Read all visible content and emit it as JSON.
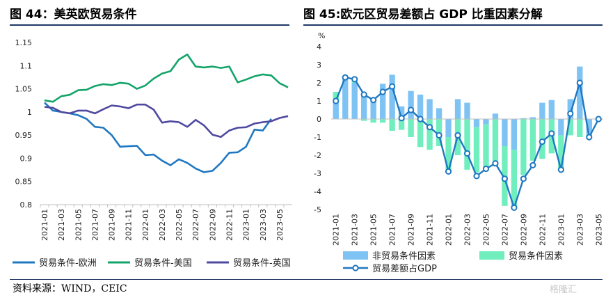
{
  "left_title": "图 44：美英欧贸易条件",
  "right_title": "图 45:欧元区贸易差额占 GDP 比重因素分解",
  "source": "资料来源：WIND，CEIC",
  "watermark": "格隆汇",
  "chart_data": [
    {
      "type": "line",
      "x": [
        "2021-01",
        "2021-02",
        "2021-03",
        "2021-04",
        "2021-05",
        "2021-06",
        "2021-07",
        "2021-08",
        "2021-09",
        "2021-10",
        "2021-11",
        "2021-12",
        "2022-01",
        "2022-02",
        "2022-03",
        "2022-04",
        "2022-05",
        "2022-06",
        "2022-07",
        "2022-08",
        "2022-09",
        "2022-10",
        "2022-11",
        "2022-12",
        "2023-01",
        "2023-02",
        "2023-03",
        "2023-04",
        "2023-05",
        "2023-06"
      ],
      "xticks": [
        "2021-01",
        "2021-03",
        "2021-05",
        "2021-07",
        "2021-09",
        "2021-11",
        "2022-01",
        "2022-03",
        "2022-05",
        "2022-07",
        "2022-09",
        "2022-11",
        "2023-01",
        "2023-03",
        "2023-05"
      ],
      "ylim": [
        0.8,
        1.15
      ],
      "yticks": [
        "0.8",
        "0.85",
        "0.9",
        "0.95",
        "1",
        "1.05",
        "1.1",
        "1.15"
      ],
      "series": [
        {
          "name": "贸易条件-欧洲",
          "color": "#1f78c1",
          "values": [
            1.02,
            1.003,
            1.0,
            0.997,
            0.993,
            0.985,
            0.968,
            0.966,
            0.95,
            0.925,
            0.926,
            0.927,
            0.907,
            0.908,
            0.895,
            0.885,
            0.898,
            0.89,
            0.878,
            0.87,
            0.873,
            0.89,
            0.912,
            0.913,
            0.925,
            0.962,
            0.96,
            0.985,
            null,
            null
          ]
        },
        {
          "name": "贸易条件-美国",
          "color": "#13a46a",
          "values": [
            1.025,
            1.022,
            1.034,
            1.037,
            1.047,
            1.048,
            1.056,
            1.06,
            1.058,
            1.063,
            1.061,
            1.05,
            1.057,
            1.072,
            1.083,
            1.088,
            1.113,
            1.124,
            1.098,
            1.096,
            1.098,
            1.095,
            1.098,
            1.064,
            1.07,
            1.077,
            1.081,
            1.079,
            1.062,
            1.053
          ]
        },
        {
          "name": "贸易条件-英国",
          "color": "#4f4aa0",
          "values": [
            1.011,
            1.009,
            1.0,
            0.997,
            1.003,
            1.003,
            0.997,
            1.006,
            1.014,
            1.012,
            1.008,
            1.016,
            1.016,
            1.005,
            0.977,
            0.98,
            0.978,
            0.968,
            0.983,
            0.971,
            0.951,
            0.946,
            0.96,
            0.966,
            0.967,
            0.975,
            0.978,
            0.98,
            0.987,
            0.991
          ]
        }
      ]
    },
    {
      "type": "bar",
      "unit": "%",
      "x": [
        "2021-01",
        "2021-02",
        "2021-03",
        "2021-04",
        "2021-05",
        "2021-06",
        "2021-07",
        "2021-08",
        "2021-09",
        "2021-10",
        "2021-11",
        "2021-12",
        "2022-01",
        "2022-02",
        "2022-03",
        "2022-04",
        "2022-05",
        "2022-06",
        "2022-07",
        "2022-08",
        "2022-09",
        "2022-10",
        "2022-11",
        "2022-12",
        "2023-01",
        "2023-02",
        "2023-03",
        "2023-04",
        "2023-05"
      ],
      "xticks": [
        "2021-01",
        "2021-03",
        "2021-05",
        "2021-07",
        "2021-09",
        "2021-11",
        "2022-01",
        "2022-03",
        "2022-05",
        "2022-07",
        "2022-09",
        "2022-11",
        "2023-01",
        "2023-03",
        "2023-05"
      ],
      "ylim": [
        -5,
        4
      ],
      "yticks": [
        "4",
        "3",
        "2",
        "1",
        "0",
        "-1",
        "-2",
        "-3",
        "-4",
        "-5"
      ],
      "series": [
        {
          "name": "非贸易条件因素",
          "color": "#7fc3f5",
          "values": [
            0.9,
            2.2,
            2.0,
            1.4,
            1.0,
            1.95,
            2.45,
            0.7,
            1.55,
            1.35,
            1.1,
            0.6,
            -1.0,
            1.1,
            0.9,
            -0.45,
            -0.3,
            0.3,
            -1.5,
            -1.7,
            0.05,
            0.1,
            0.9,
            1.05,
            -0.9,
            1.1,
            2.9,
            -0.8,
            0.0
          ]
        },
        {
          "name": "贸易条件因素",
          "color": "#70eebe",
          "values": [
            0.6,
            0.1,
            0.1,
            -0.1,
            -0.2,
            -0.2,
            -0.65,
            -0.6,
            -1.0,
            -1.55,
            -1.7,
            -1.5,
            -1.9,
            -2.0,
            -2.8,
            -2.5,
            -2.55,
            -2.6,
            -3.3,
            -3.2,
            -3.1,
            -2.3,
            -2.2,
            -1.9,
            -1.85,
            -0.9,
            -1.0,
            -0.2,
            -0.1
          ]
        },
        {
          "name": "贸易差额占GDP",
          "color": "#1f78c1",
          "kind": "line",
          "values": [
            1.0,
            2.3,
            2.2,
            1.35,
            1.05,
            1.5,
            1.8,
            0.05,
            0.5,
            0.0,
            -0.45,
            -0.9,
            -2.9,
            -0.9,
            -1.9,
            -3.15,
            -2.75,
            -2.45,
            -3.3,
            -4.9,
            -3.3,
            -2.55,
            -1.25,
            -0.8,
            -2.8,
            0.3,
            2.0,
            -1.0,
            0.0
          ]
        }
      ]
    }
  ]
}
